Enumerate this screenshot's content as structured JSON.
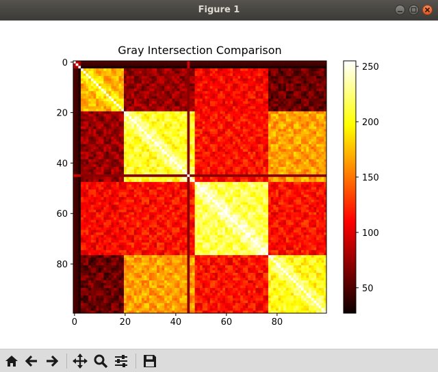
{
  "window": {
    "title": "Figure 1",
    "buttons": [
      "minimize",
      "maximize",
      "close"
    ]
  },
  "toolbar": {
    "items": [
      {
        "name": "home-button",
        "icon": "home-icon"
      },
      {
        "name": "back-button",
        "icon": "arrow-left-icon"
      },
      {
        "name": "forward-button",
        "icon": "arrow-right-icon"
      },
      {
        "name": "pan-button",
        "icon": "move-icon"
      },
      {
        "name": "zoom-button",
        "icon": "magnifier-icon"
      },
      {
        "name": "configure-subplots-button",
        "icon": "sliders-icon"
      },
      {
        "name": "save-button",
        "icon": "floppy-disk-icon"
      }
    ]
  },
  "chart_data": {
    "type": "heatmap",
    "title": "Gray Intersection Comparison",
    "colormap": "hot",
    "size": [
      100,
      100
    ],
    "x_ticks": [
      0,
      20,
      40,
      60,
      80
    ],
    "y_ticks": [
      0,
      20,
      40,
      60,
      80
    ],
    "colorbar": {
      "range": [
        27,
        255
      ],
      "ticks": [
        50,
        100,
        150,
        200,
        250
      ]
    },
    "blocks": [
      {
        "rows": [
          2,
          19
        ],
        "cols": [
          2,
          19
        ],
        "value": 170
      },
      {
        "rows": [
          20,
          47
        ],
        "cols": [
          20,
          47
        ],
        "value": 205
      },
      {
        "rows": [
          48,
          76
        ],
        "cols": [
          48,
          76
        ],
        "value": 215
      },
      {
        "rows": [
          77,
          99
        ],
        "cols": [
          77,
          99
        ],
        "value": 200
      }
    ],
    "block_pairs": [
      {
        "a": [
          2,
          19
        ],
        "b": [
          20,
          47
        ],
        "value": 75
      },
      {
        "a": [
          2,
          19
        ],
        "b": [
          48,
          76
        ],
        "value": 110
      },
      {
        "a": [
          2,
          19
        ],
        "b": [
          77,
          99
        ],
        "value": 60
      },
      {
        "a": [
          20,
          47
        ],
        "b": [
          48,
          76
        ],
        "value": 115
      },
      {
        "a": [
          20,
          47
        ],
        "b": [
          77,
          99
        ],
        "value": 165
      },
      {
        "a": [
          48,
          76
        ],
        "b": [
          77,
          99
        ],
        "value": 115
      }
    ],
    "outlier_rows": [
      {
        "index": 0,
        "value": 50
      },
      {
        "index": 1,
        "value": 45
      },
      {
        "index": 2,
        "value": 35
      },
      {
        "index": 45,
        "value": 70
      }
    ],
    "diagonal": 255
  }
}
